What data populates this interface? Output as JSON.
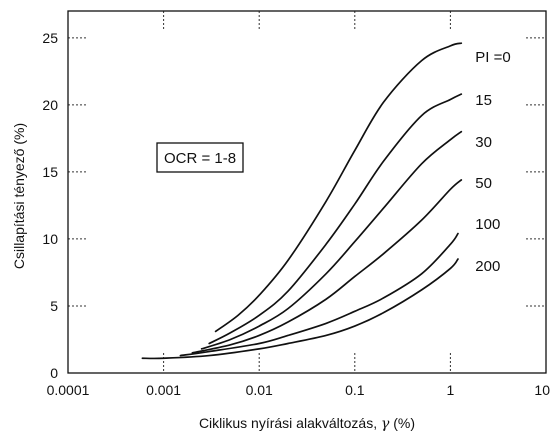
{
  "chart_data": {
    "type": "line",
    "x_scale": "log",
    "xlim": [
      0.0001,
      10
    ],
    "ylim": [
      0,
      27
    ],
    "x_ticks": [
      "0.0001",
      "0.001",
      "0.01",
      "0.1",
      "1",
      "10"
    ],
    "y_ticks": [
      "0",
      "5",
      "10",
      "15",
      "20",
      "25"
    ],
    "xlabel_text": "Ciklikus nyírási alakváltozás, ",
    "xlabel_symbol": "γ",
    "xlabel_unit": " (%)",
    "ylabel": "Csillapítási tényező (%)",
    "annotation": "OCR = 1-8",
    "grid": "dashed tick marks on frame edges",
    "series": [
      {
        "label": "PI =0",
        "points": [
          [
            0.0035,
            3.1
          ],
          [
            0.006,
            4.3
          ],
          [
            0.01,
            5.8
          ],
          [
            0.02,
            8.4
          ],
          [
            0.05,
            12.8
          ],
          [
            0.1,
            16.6
          ],
          [
            0.2,
            20.2
          ],
          [
            0.5,
            23.3
          ],
          [
            1.0,
            24.4
          ],
          [
            1.3,
            24.6
          ]
        ]
      },
      {
        "label": "15",
        "points": [
          [
            0.003,
            2.2
          ],
          [
            0.005,
            3.0
          ],
          [
            0.01,
            4.3
          ],
          [
            0.02,
            6.1
          ],
          [
            0.05,
            9.6
          ],
          [
            0.1,
            12.6
          ],
          [
            0.2,
            15.8
          ],
          [
            0.5,
            19.2
          ],
          [
            1.0,
            20.4
          ],
          [
            1.3,
            20.8
          ]
        ]
      },
      {
        "label": "30",
        "points": [
          [
            0.0025,
            1.8
          ],
          [
            0.005,
            2.5
          ],
          [
            0.01,
            3.5
          ],
          [
            0.02,
            4.8
          ],
          [
            0.05,
            7.4
          ],
          [
            0.1,
            9.8
          ],
          [
            0.2,
            12.3
          ],
          [
            0.5,
            15.6
          ],
          [
            1.0,
            17.4
          ],
          [
            1.3,
            18.0
          ]
        ]
      },
      {
        "label": "50",
        "points": [
          [
            0.002,
            1.5
          ],
          [
            0.005,
            2.1
          ],
          [
            0.01,
            2.8
          ],
          [
            0.02,
            3.8
          ],
          [
            0.05,
            5.5
          ],
          [
            0.1,
            7.2
          ],
          [
            0.2,
            8.9
          ],
          [
            0.5,
            11.4
          ],
          [
            1.0,
            13.7
          ],
          [
            1.3,
            14.4
          ]
        ]
      },
      {
        "label": "100",
        "points": [
          [
            0.0015,
            1.3
          ],
          [
            0.003,
            1.6
          ],
          [
            0.01,
            2.2
          ],
          [
            0.02,
            2.8
          ],
          [
            0.05,
            3.7
          ],
          [
            0.1,
            4.6
          ],
          [
            0.2,
            5.6
          ],
          [
            0.5,
            7.4
          ],
          [
            1.0,
            9.6
          ],
          [
            1.2,
            10.4
          ]
        ]
      },
      {
        "label": "200",
        "points": [
          [
            0.0006,
            1.1
          ],
          [
            0.001,
            1.1
          ],
          [
            0.003,
            1.3
          ],
          [
            0.01,
            1.8
          ],
          [
            0.02,
            2.2
          ],
          [
            0.05,
            2.8
          ],
          [
            0.1,
            3.5
          ],
          [
            0.2,
            4.5
          ],
          [
            0.5,
            6.2
          ],
          [
            1.0,
            7.8
          ],
          [
            1.2,
            8.5
          ]
        ]
      }
    ]
  }
}
